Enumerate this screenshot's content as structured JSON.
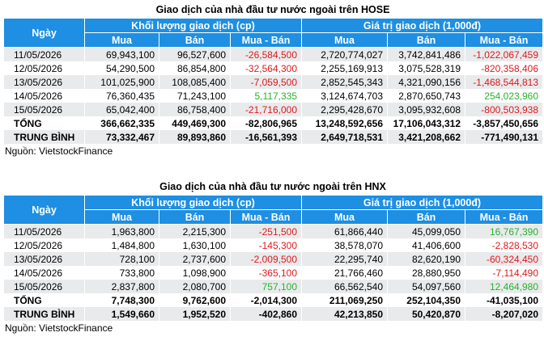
{
  "colors": {
    "header_bg": "#1e8fe2",
    "negative": "#e0191b",
    "positive": "#27b32b",
    "stripe": "#e8eaec"
  },
  "hose": {
    "title": "Giao dịch của nhà đầu tư nước ngoài trên HOSE",
    "col_date": "Ngày",
    "group_volume": "Khối lượng giao dịch (cp)",
    "group_value": "Giá trị giao dịch (1,000đ)",
    "sub_cols": [
      "Mua",
      "Bán",
      "Mua - Bán",
      "Mua",
      "Bán",
      "Mua - Bán"
    ],
    "rows": [
      {
        "date": "11/05/2026",
        "cells": [
          "69,943,100",
          "96,527,600",
          "-26,584,500",
          "2,720,774,027",
          "3,742,841,486",
          "-1,022,067,459"
        ]
      },
      {
        "date": "12/05/2026",
        "cells": [
          "54,290,500",
          "86,854,800",
          "-32,564,300",
          "2,255,169,913",
          "3,075,528,319",
          "-820,358,406"
        ]
      },
      {
        "date": "13/05/2026",
        "cells": [
          "101,025,900",
          "108,085,400",
          "-7,059,500",
          "2,852,545,343",
          "4,321,090,156",
          "-1,468,544,813"
        ]
      },
      {
        "date": "14/05/2026",
        "cells": [
          "76,360,435",
          "71,243,100",
          "5,117,335",
          "3,124,674,703",
          "2,870,650,743",
          "254,023,960"
        ]
      },
      {
        "date": "15/05/2026",
        "cells": [
          "65,042,400",
          "86,758,400",
          "-21,716,000",
          "2,295,428,670",
          "3,095,932,608",
          "-800,503,938"
        ]
      }
    ],
    "total": {
      "label": "TỔNG",
      "cells": [
        "366,662,335",
        "449,469,300",
        "-82,806,965",
        "13,248,592,656",
        "17,106,043,312",
        "-3,857,450,656"
      ]
    },
    "average": {
      "label": "TRUNG BÌNH",
      "cells": [
        "73,332,467",
        "89,893,860",
        "-16,561,393",
        "2,649,718,531",
        "3,421,208,662",
        "-771,490,131"
      ]
    },
    "source": "Nguồn: VietstockFinance"
  },
  "hnx": {
    "title": "Giao dịch của nhà đầu tư nước ngoài trên HNX",
    "col_date": "Ngày",
    "group_volume": "Khối lượng giao dịch (cp)",
    "group_value": "Giá trị giao dịch (1,000đ)",
    "sub_cols": [
      "Mua",
      "Bán",
      "Mua - Bán",
      "Mua",
      "Bán",
      "Mua - Bán"
    ],
    "rows": [
      {
        "date": "11/05/2026",
        "cells": [
          "1,963,800",
          "2,215,300",
          "-251,500",
          "61,866,440",
          "45,099,050",
          "16,767,390"
        ]
      },
      {
        "date": "12/05/2026",
        "cells": [
          "1,484,800",
          "1,630,100",
          "-145,300",
          "38,578,070",
          "41,406,600",
          "-2,828,530"
        ]
      },
      {
        "date": "13/05/2026",
        "cells": [
          "728,100",
          "2,737,600",
          "-2,009,500",
          "22,295,740",
          "82,620,190",
          "-60,324,450"
        ]
      },
      {
        "date": "14/05/2026",
        "cells": [
          "733,800",
          "1,098,900",
          "-365,100",
          "21,766,460",
          "28,880,950",
          "-7,114,490"
        ]
      },
      {
        "date": "15/05/2026",
        "cells": [
          "2,837,800",
          "2,080,700",
          "757,100",
          "66,562,540",
          "54,097,560",
          "12,464,980"
        ]
      }
    ],
    "total": {
      "label": "TỔNG",
      "cells": [
        "7,748,300",
        "9,762,600",
        "-2,014,300",
        "211,069,250",
        "252,104,350",
        "-41,035,100"
      ]
    },
    "average": {
      "label": "TRUNG BÌNH",
      "cells": [
        "1,549,660",
        "1,952,520",
        "-402,860",
        "42,213,850",
        "50,420,870",
        "-8,207,020"
      ]
    },
    "source": "Nguồn: VietstockFinance"
  }
}
